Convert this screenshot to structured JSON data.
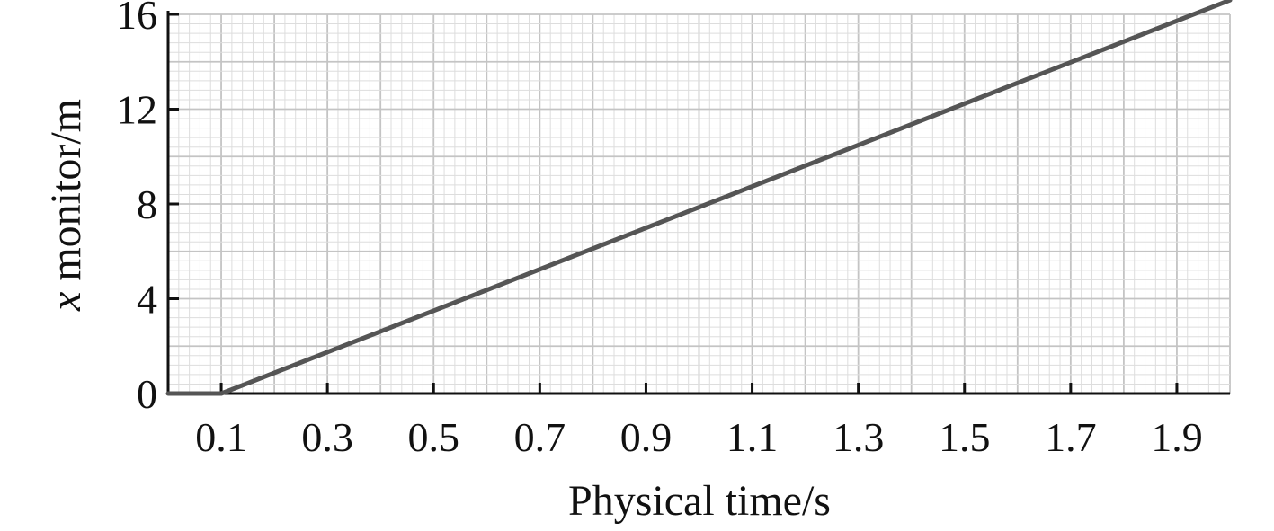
{
  "chart_data": {
    "type": "line",
    "xlabel": "Physical time/s",
    "ylabel_italic_part": "x",
    "ylabel_rest": " monitor/m",
    "xlim": [
      0.0,
      2.0
    ],
    "ylim": [
      0,
      16
    ],
    "x_ticks": [
      0.1,
      0.3,
      0.5,
      0.7,
      0.9,
      1.1,
      1.3,
      1.5,
      1.7,
      1.9
    ],
    "x_tick_labels": [
      "0.1",
      "0.3",
      "0.5",
      "0.7",
      "0.9",
      "1.1",
      "1.3",
      "1.5",
      "1.7",
      "1.9"
    ],
    "y_ticks": [
      0,
      4,
      8,
      12,
      16
    ],
    "y_tick_labels": [
      "0",
      "4",
      "8",
      "12",
      "16"
    ],
    "grid": true,
    "series": [
      {
        "x": [
          0.0,
          0.1,
          2.0
        ],
        "y": [
          0.0,
          0.0,
          16.6
        ]
      }
    ],
    "colors": {
      "series": "#555555",
      "axis": "#111111",
      "grid_major": "#c4c4c4",
      "grid_minor": "#dddddd"
    }
  }
}
